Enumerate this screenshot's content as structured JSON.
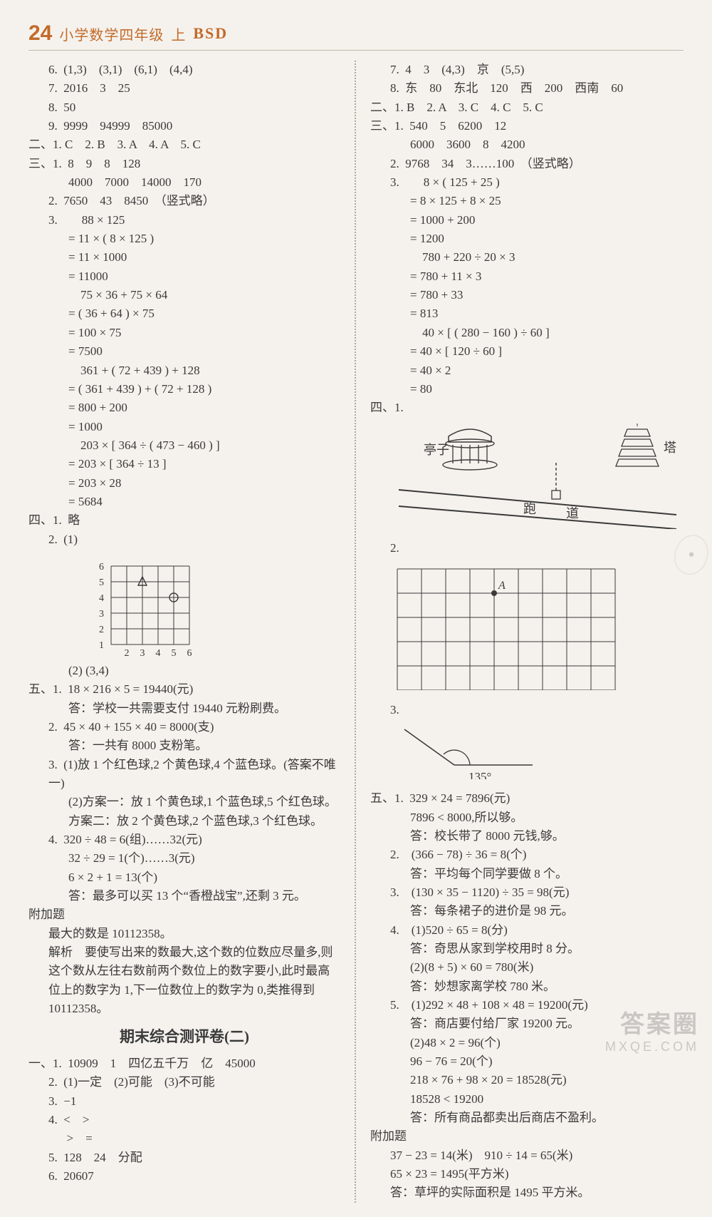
{
  "header": {
    "pagenum": "24",
    "title": "小学数学四年级",
    "circled": "上",
    "bsd": "BSD"
  },
  "left": {
    "l6": "6.  (1,3)　(3,1)　(6,1)　(4,4)",
    "l7": "7.  2016　3　25",
    "l8": "8.  50",
    "l9": "9.  9999　94999　85000",
    "sec2": "二、1. C　2. B　3. A　4. A　5. C",
    "s3a": "三、1.  8　9　8　128",
    "s3b": "4000　7000　14000　170",
    "s3c": "2.  7650　43　8450　（竖式略）",
    "s3d": "3.　　88 × 125",
    "s3e": "= 11 × ( 8 × 125 )",
    "s3f": "= 11 × 1000",
    "s3g": "= 11000",
    "s3h": "　75 × 36 + 75 × 64",
    "s3i": "= ( 36 + 64 ) × 75",
    "s3j": "= 100 × 75",
    "s3k": "= 7500",
    "s3l": "　361 + ( 72 + 439 ) + 128",
    "s3m": "= ( 361 + 439 ) + ( 72 + 128 )",
    "s3n": "= 800 + 200",
    "s3o": "= 1000",
    "s3p": "　203 × [ 364 ÷ ( 473 − 460 ) ]",
    "s3q": "= 203 × [ 364 ÷ 13 ]",
    "s3r": "= 203 × 28",
    "s3s": "= 5684",
    "sec4a": "四、1.  略",
    "sec4b": "2.  (1)",
    "grid": {
      "xlabels": [
        "2",
        "3",
        "4",
        "5",
        "6"
      ],
      "ylabels": [
        "1",
        "2",
        "3",
        "4",
        "5",
        "6"
      ],
      "tri": [
        3,
        5
      ],
      "circ": [
        5,
        4
      ],
      "stroke": "#3a3a3a"
    },
    "sec4c": "(2) (3,4)",
    "s5a": "五、1.  18 × 216 × 5 = 19440(元)",
    "s5b": "答：学校一共需要支付 19440 元粉刷费。",
    "s5c": "2.  45 × 40 + 155 × 40 = 8000(支)",
    "s5d": "答：一共有 8000 支粉笔。",
    "s5e": "3.  (1)放 1 个红色球,2 个黄色球,4 个蓝色球。(答案不唯一)",
    "s5f": "(2)方案一：放 1 个黄色球,1 个蓝色球,5 个红色球。",
    "s5g": "方案二：放 2 个黄色球,2 个蓝色球,3 个红色球。",
    "s5h": "4.  320 ÷ 48 = 6(组)……32(元)",
    "s5i": "32 ÷ 29 = 1(个)……3(元)",
    "s5j": "6 × 2 + 1 = 13(个)",
    "s5k": "答：最多可以买 13 个“香橙战宝”,还剩 3 元。",
    "bonus_h": "附加题",
    "b1": "最大的数是 10112358。",
    "b2": "解析　要使写出来的数最大,这个数的位数应尽量多,则这个数从左往右数前两个数位上的数字要小,此时最高位上的数字为 1,下一位数位上的数字为 0,类推得到 10112358。",
    "title2": "期末综合测评卷(二)",
    "p1a": "一、1.  10909　1　四亿五千万　亿　45000",
    "p1b": "2.  (1)一定　(2)可能　(3)不可能",
    "p1c": "3.  −1",
    "p1d": "4.  <　>",
    "p1e": "　  >　=",
    "p1f": "5.  128　24　分配",
    "p1g": "6.  20607"
  },
  "right": {
    "r7": "7.  4　3　(4,3)　京　(5,5)",
    "r8": "8.  东　80　东北　120　西　200　西南　60",
    "rs2": "二、1. B　2. A　3. C　4. C　5. C",
    "rs3a": "三、1.  540　5　6200　12",
    "rs3b": "6000　3600　8　4200",
    "rs3c": "2.  9768　34　3……100　（竖式略）",
    "rs3d": "3.　　8 × ( 125 + 25 )",
    "rs3e": "= 8 × 125 + 8 × 25",
    "rs3f": "= 1000 + 200",
    "rs3g": "= 1200",
    "rs3h": "　780 + 220 ÷ 20 × 3",
    "rs3i": "= 780 + 11 × 3",
    "rs3j": "= 780 + 33",
    "rs3k": "= 813",
    "rs3l": "　40 × [ ( 280 − 160 ) ÷ 60 ]",
    "rs3m": "= 40 × [ 120 ÷ 60 ]",
    "rs3n": "= 40 × 2",
    "rs3o": "= 80",
    "rs4": "四、1.",
    "diagram": {
      "pavilion": "亭子",
      "tower": "塔",
      "track1": "跑",
      "track2": "道",
      "stroke": "#3a3a3a"
    },
    "rs4b": "2.",
    "gridA": {
      "cols": 9,
      "rows": 5,
      "A_col": 4,
      "A_row": 1,
      "label": "A",
      "stroke": "#3a3a3a"
    },
    "rs4c": "3.",
    "angle": {
      "label": "135°",
      "stroke": "#3a3a3a"
    },
    "r5a": "五、1.  329 × 24 = 7896(元)",
    "r5b": "7896 < 8000,所以够。",
    "r5c": "答：校长带了 8000 元钱,够。",
    "r5d": "2.　(366 − 78) ÷ 36 = 8(个)",
    "r5e": "答：平均每个同学要做 8 个。",
    "r5f": "3.　(130 × 35 − 1120) ÷ 35 = 98(元)",
    "r5g": "答：每条裙子的进价是 98 元。",
    "r5h": "4.　(1)520 ÷ 65 = 8(分)",
    "r5i": "答：奇思从家到学校用时 8 分。",
    "r5j": "(2)(8 + 5) × 60 = 780(米)",
    "r5k": "答：妙想家离学校 780 米。",
    "r5l": "5.　(1)292 × 48 + 108 × 48 = 19200(元)",
    "r5m": "答：商店要付给厂家 19200 元。",
    "r5n": "(2)48 × 2 = 96(个)",
    "r5o": "96 − 76 = 20(个)",
    "r5p": "218 × 76 + 98 × 20 = 18528(元)",
    "r5q": "18528 < 19200",
    "r5r": "答：所有商品都卖出后商店不盈利。",
    "rbonus_h": "附加题",
    "rb1": "37 − 23 = 14(米)　910 ÷ 14 = 65(米)",
    "rb2": "65 × 23 = 1495(平方米)",
    "rb3": "答：草坪的实际面积是 1495 平方米。"
  },
  "watermark": {
    "line1": "答案圈",
    "line2": "MXQE.COM"
  }
}
